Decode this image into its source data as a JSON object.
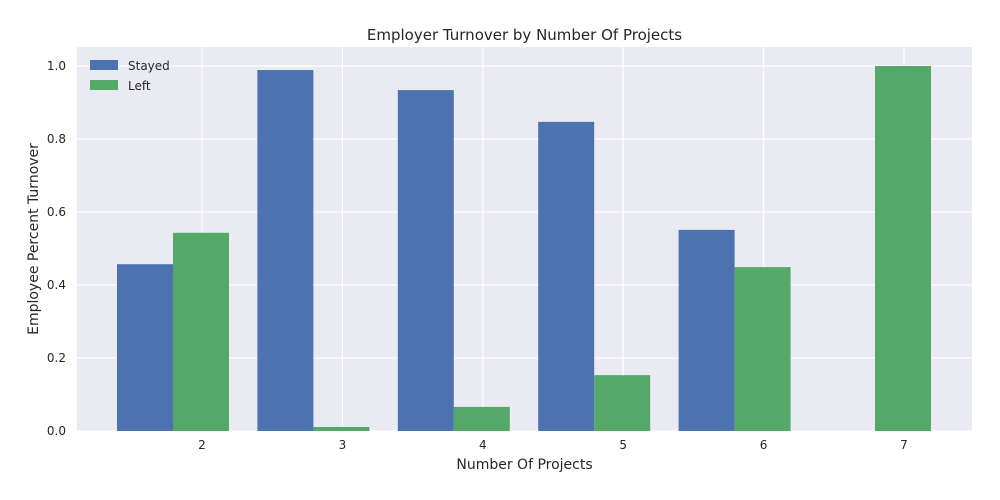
{
  "chart_data": {
    "type": "bar",
    "title": "Employer Turnover by Number Of Projects",
    "xlabel": "Number Of Projects",
    "ylabel": "Employee Percent Turnover",
    "categories": [
      "2",
      "3",
      "4",
      "5",
      "6",
      "7"
    ],
    "series": [
      {
        "name": "Stayed",
        "color": "#4c72b0",
        "values": [
          0.457,
          0.989,
          0.934,
          0.847,
          0.551,
          0.0
        ]
      },
      {
        "name": "Left",
        "color": "#55a868",
        "values": [
          0.543,
          0.011,
          0.066,
          0.153,
          0.449,
          1.0
        ]
      }
    ],
    "ylim": [
      0,
      1.0
    ],
    "yticks": [
      "0.0",
      "0.2",
      "0.4",
      "0.6",
      "0.8",
      "1.0"
    ],
    "ytick_values": [
      0,
      0.2,
      0.4,
      0.6,
      0.8,
      1.0
    ],
    "grid": true,
    "legend_position": "top-left",
    "background": "#eaeaf2"
  }
}
